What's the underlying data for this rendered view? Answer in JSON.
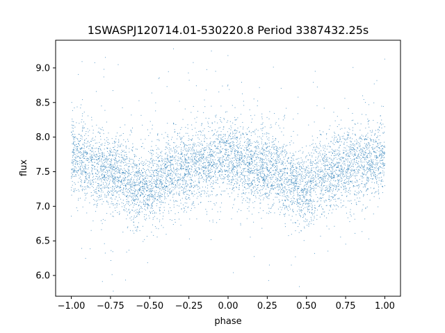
{
  "chart_data": {
    "type": "scatter",
    "title": "1SWASPJ120714.01-530220.8 Period 3387432.25s",
    "xlabel": "phase",
    "ylabel": "flux",
    "xlim": [
      -1.1,
      1.1
    ],
    "ylim": [
      5.7,
      9.4
    ],
    "x_ticks": [
      -1.0,
      -0.75,
      -0.5,
      -0.25,
      0.0,
      0.25,
      0.5,
      0.75,
      1.0
    ],
    "x_tick_labels": [
      "−1.00",
      "−0.75",
      "−0.50",
      "−0.25",
      "0.00",
      "0.25",
      "0.50",
      "0.75",
      "1.00"
    ],
    "y_ticks": [
      6.0,
      6.5,
      7.0,
      7.5,
      8.0,
      8.5,
      9.0
    ],
    "y_tick_labels": [
      "6.0",
      "6.5",
      "7.0",
      "7.5",
      "8.0",
      "8.5",
      "9.0"
    ],
    "marker_color": "#1f77b4",
    "grid": false,
    "series": [
      {
        "x_range": [
          -1.0,
          1.0
        ],
        "profile_phase": [
          -1.0,
          -0.9,
          -0.8,
          -0.7,
          -0.6,
          -0.5,
          -0.4,
          -0.3,
          -0.2,
          -0.1,
          0.0,
          0.1,
          0.2,
          0.3,
          0.4,
          0.5,
          0.6,
          0.7,
          0.8,
          0.9,
          1.0
        ],
        "profile_flux": [
          7.75,
          7.65,
          7.5,
          7.5,
          7.3,
          7.25,
          7.45,
          7.55,
          7.6,
          7.65,
          7.7,
          7.65,
          7.55,
          7.5,
          7.35,
          7.25,
          7.45,
          7.55,
          7.6,
          7.65,
          7.75
        ],
        "scatter_sd": 0.28,
        "n_points": 7000
      }
    ]
  }
}
